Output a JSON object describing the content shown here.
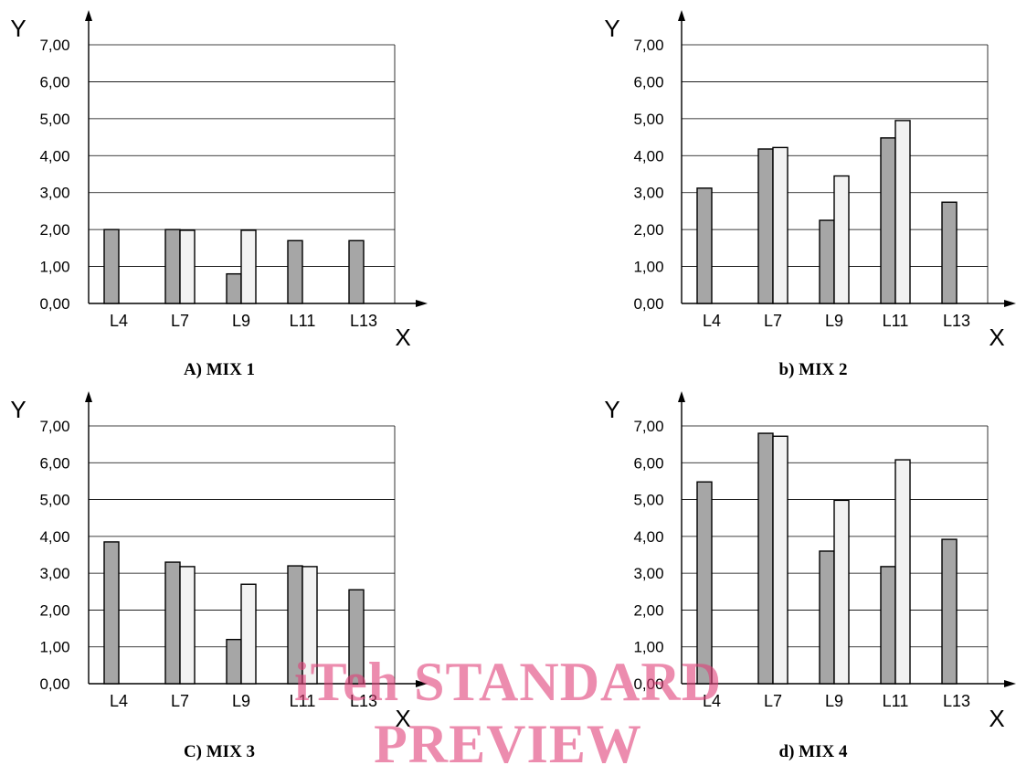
{
  "colors": {
    "series_dark": "#a6a6a6",
    "series_light": "#f2f2f2",
    "grid": "#000000",
    "watermark": "#e04078"
  },
  "watermark": {
    "line1": "iTeh STANDARD",
    "line2": "PREVIEW"
  },
  "chart_data": [
    {
      "type": "bar",
      "caption": "A) MIX 1",
      "ylabel": "Y",
      "xlabel": "X",
      "ylim": [
        0,
        7
      ],
      "yticks": [
        "0,00",
        "1,00",
        "2,00",
        "3,00",
        "4,00",
        "5,00",
        "6,00",
        "7,00"
      ],
      "categories": [
        "L4",
        "L7",
        "L9",
        "L11",
        "L13"
      ],
      "series": [
        {
          "values": [
            2.0,
            2.0,
            0.8,
            1.7,
            1.7
          ]
        },
        {
          "values": [
            null,
            1.98,
            1.98,
            null,
            null
          ]
        }
      ]
    },
    {
      "type": "bar",
      "caption": "b) MIX 2",
      "ylabel": "Y",
      "xlabel": "X",
      "ylim": [
        0,
        7
      ],
      "yticks": [
        "0,00",
        "1,00",
        "2,00",
        "3,00",
        "4,00",
        "5,00",
        "6,00",
        "7,00"
      ],
      "categories": [
        "L4",
        "L7",
        "L9",
        "L11",
        "L13"
      ],
      "series": [
        {
          "values": [
            3.12,
            4.18,
            2.25,
            4.48,
            2.74
          ]
        },
        {
          "values": [
            null,
            4.22,
            3.45,
            4.95,
            null
          ]
        }
      ]
    },
    {
      "type": "bar",
      "caption": "C) MIX 3",
      "ylabel": "Y",
      "xlabel": "X",
      "ylim": [
        0,
        7
      ],
      "yticks": [
        "0,00",
        "1,00",
        "2,00",
        "3,00",
        "4,00",
        "5,00",
        "6,00",
        "7,00"
      ],
      "categories": [
        "L4",
        "L7",
        "L9",
        "L11",
        "L13"
      ],
      "series": [
        {
          "values": [
            3.85,
            3.3,
            1.2,
            3.2,
            2.55
          ]
        },
        {
          "values": [
            null,
            3.18,
            2.7,
            3.18,
            null
          ]
        }
      ]
    },
    {
      "type": "bar",
      "caption": "d) MIX 4",
      "ylabel": "Y",
      "xlabel": "X",
      "ylim": [
        0,
        7
      ],
      "yticks": [
        "0,00",
        "1,00",
        "2,00",
        "3,00",
        "4,00",
        "5,00",
        "6,00",
        "7,00"
      ],
      "categories": [
        "L4",
        "L7",
        "L9",
        "L11",
        "L13"
      ],
      "series": [
        {
          "values": [
            5.48,
            6.8,
            3.6,
            3.18,
            3.92
          ]
        },
        {
          "values": [
            null,
            6.72,
            4.98,
            6.08,
            null
          ]
        }
      ]
    }
  ]
}
